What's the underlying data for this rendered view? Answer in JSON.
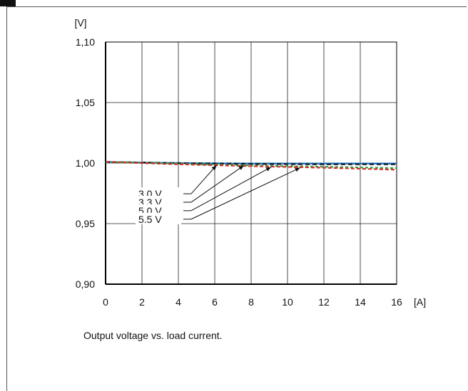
{
  "caption": "Output voltage vs. load current.",
  "chart_data": {
    "type": "line",
    "title": "",
    "xlabel": "",
    "ylabel": "",
    "x_unit": "[A]",
    "y_unit": "[V]",
    "xlim": [
      0,
      16
    ],
    "ylim": [
      0.9,
      1.1
    ],
    "x_ticks": [
      0,
      2,
      4,
      6,
      8,
      10,
      12,
      14,
      16
    ],
    "x_tick_labels": [
      "0",
      "2",
      "4",
      "6",
      "8",
      "10",
      "12",
      "14",
      "16"
    ],
    "y_ticks": [
      0.9,
      0.95,
      1.0,
      1.05,
      1.1
    ],
    "y_tick_labels": [
      "0,90",
      "0,95",
      "1,00",
      "1,05",
      "1,10"
    ],
    "grid": true,
    "series": [
      {
        "name": "3.0 V",
        "color": "#1f6fd0",
        "dash": "",
        "x": [
          0,
          4,
          8,
          12,
          16
        ],
        "y": [
          1.001,
          1.0,
          0.9995,
          0.9995,
          0.9995
        ],
        "label_y": 0.9735,
        "arrow_x": 6.1
      },
      {
        "name": "3.3 V",
        "color": "#111111",
        "dash": "6,4",
        "x": [
          0,
          4,
          8,
          12,
          16
        ],
        "y": [
          1.001,
          1.0,
          0.9993,
          0.999,
          0.999
        ],
        "label_y": 0.9665,
        "arrow_x": 7.6
      },
      {
        "name": "5.0 V",
        "color": "#2e9e3e",
        "dash": "4,3",
        "x": [
          0,
          4,
          8,
          12,
          16
        ],
        "y": [
          1.001,
          0.9995,
          0.998,
          0.997,
          0.9958
        ],
        "label_y": 0.9595,
        "arrow_x": 9.1
      },
      {
        "name": "5.5 V",
        "color": "#d0302a",
        "dash": "5,3",
        "x": [
          0,
          4,
          8,
          12,
          16
        ],
        "y": [
          1.001,
          0.999,
          0.9975,
          0.9962,
          0.9945
        ],
        "label_y": 0.9525,
        "arrow_x": 10.7
      }
    ],
    "extra_series": [
      {
        "color": "#2bb3c8",
        "dash": "3,3",
        "x": [
          0,
          4,
          8,
          12,
          16
        ],
        "y": [
          1.0005,
          1.0,
          0.9998,
          0.9998,
          0.9998
        ]
      }
    ]
  }
}
